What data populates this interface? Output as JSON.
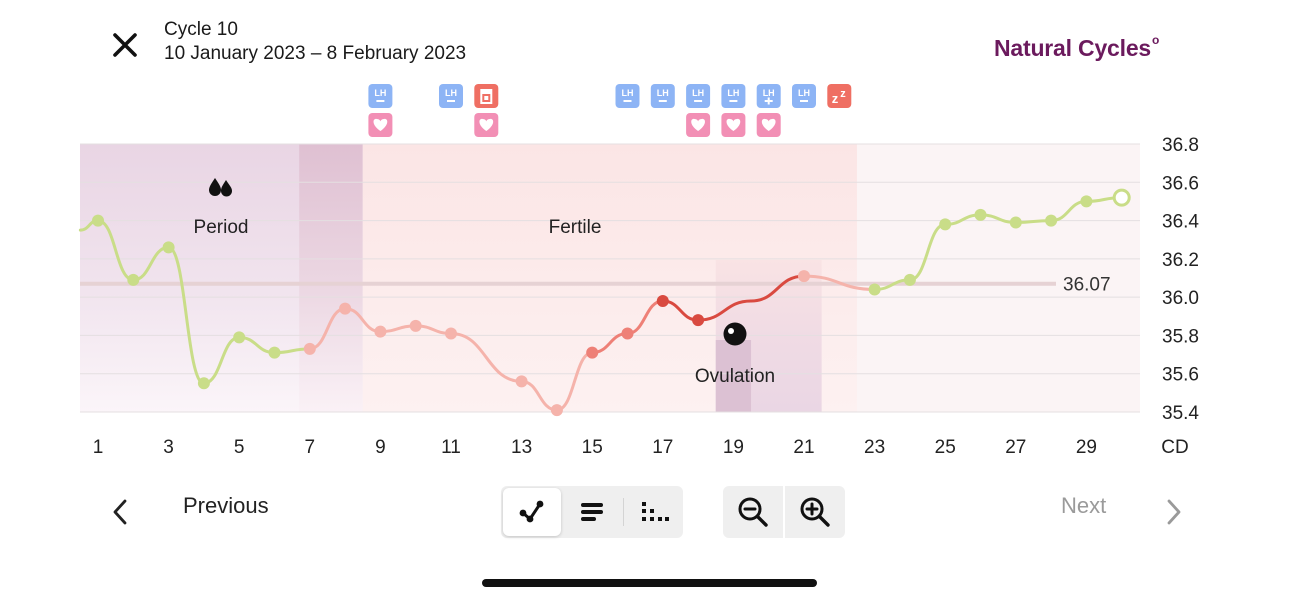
{
  "header": {
    "cycle_title": "Cycle 10",
    "cycle_dates": "10 January 2023 – 8 February 2023",
    "brand": "Natural Cycles",
    "brand_mark": "o"
  },
  "chart_data": {
    "type": "line",
    "x_label": "CD",
    "y_ticks": [
      "36.8",
      "36.6",
      "36.4",
      "36.2",
      "36.0",
      "35.8",
      "35.6",
      "35.4"
    ],
    "ylim": [
      35.4,
      36.8
    ],
    "x_ticks": [
      "1",
      "3",
      "5",
      "7",
      "9",
      "11",
      "13",
      "15",
      "17",
      "19",
      "21",
      "23",
      "25",
      "27",
      "29"
    ],
    "coverline": {
      "value": 36.07,
      "label": "36.07"
    },
    "phases": [
      {
        "name": "Period",
        "icon": "drops-icon",
        "start_day": 1,
        "end_day": 8.5
      },
      {
        "name": "Fertile",
        "start_day": 8.5,
        "end_day": 22.5
      },
      {
        "name": "Ovulation",
        "icon": "ovulation-dot-icon",
        "start_day": 18.5,
        "end_day": 21.5
      }
    ],
    "series": [
      {
        "values": [
          {
            "day": 0.5,
            "temp": 36.35,
            "color": "#c9dd88"
          },
          {
            "day": 1,
            "temp": 36.4,
            "color": "#c9dd88"
          },
          {
            "day": 2,
            "temp": 36.09,
            "color": "#c9dd88"
          },
          {
            "day": 3,
            "temp": 36.26,
            "color": "#c9dd88"
          },
          {
            "day": 4,
            "temp": 35.55,
            "color": "#c9dd88"
          },
          {
            "day": 5,
            "temp": 35.79,
            "color": "#c9dd88"
          },
          {
            "day": 6,
            "temp": 35.71,
            "color": "#c9dd88"
          },
          {
            "day": 7,
            "temp": 35.73,
            "color": "#f5b3ab"
          },
          {
            "day": 8,
            "temp": 35.94,
            "color": "#f5b3ab"
          },
          {
            "day": 9,
            "temp": 35.82,
            "color": "#f5b3ab"
          },
          {
            "day": 10,
            "temp": 35.85,
            "color": "#f5b3ab"
          },
          {
            "day": 11,
            "temp": 35.81,
            "color": "#f5b3ab"
          },
          {
            "day": 13,
            "temp": 35.56,
            "color": "#f5b3ab"
          },
          {
            "day": 14,
            "temp": 35.41,
            "color": "#f5b3ab"
          },
          {
            "day": 15,
            "temp": 35.71,
            "color": "#ee8077"
          },
          {
            "day": 16,
            "temp": 35.81,
            "color": "#ee8077"
          },
          {
            "day": 17,
            "temp": 35.98,
            "color": "#d94a40"
          },
          {
            "day": 18,
            "temp": 35.88,
            "color": "#d94a40"
          },
          {
            "day": 19.5,
            "temp": 35.98,
            "color": "#d94a40",
            "no_marker": true
          },
          {
            "day": 21,
            "temp": 36.11,
            "color": "#f5b3ab"
          },
          {
            "day": 23,
            "temp": 36.04,
            "color": "#c9dd88"
          },
          {
            "day": 24,
            "temp": 36.09,
            "color": "#c9dd88"
          },
          {
            "day": 25,
            "temp": 36.38,
            "color": "#c9dd88"
          },
          {
            "day": 26,
            "temp": 36.43,
            "color": "#c9dd88"
          },
          {
            "day": 27,
            "temp": 36.39,
            "color": "#c9dd88"
          },
          {
            "day": 28,
            "temp": 36.4,
            "color": "#c9dd88"
          },
          {
            "day": 29,
            "temp": 36.5,
            "color": "#c9dd88"
          },
          {
            "day": 30,
            "temp": 36.52,
            "color": "#c9dd88",
            "hollow": true
          }
        ]
      }
    ],
    "markers": [
      {
        "day": 9,
        "row": 1,
        "icon": "lh-negative-icon",
        "label": "LH"
      },
      {
        "day": 9,
        "row": 2,
        "icon": "heart-icon"
      },
      {
        "day": 11,
        "row": 1,
        "icon": "lh-negative-icon",
        "label": "LH"
      },
      {
        "day": 12,
        "row": 1,
        "icon": "pregnancy-test-icon"
      },
      {
        "day": 12,
        "row": 2,
        "icon": "heart-icon"
      },
      {
        "day": 16,
        "row": 1,
        "icon": "lh-negative-icon",
        "label": "LH"
      },
      {
        "day": 17,
        "row": 1,
        "icon": "lh-negative-icon",
        "label": "LH"
      },
      {
        "day": 18,
        "row": 1,
        "icon": "lh-negative-icon",
        "label": "LH"
      },
      {
        "day": 18,
        "row": 2,
        "icon": "heart-icon"
      },
      {
        "day": 19,
        "row": 1,
        "icon": "lh-negative-icon",
        "label": "LH"
      },
      {
        "day": 19,
        "row": 2,
        "icon": "heart-icon"
      },
      {
        "day": 20,
        "row": 1,
        "icon": "lh-positive-icon",
        "label": "LH"
      },
      {
        "day": 20,
        "row": 2,
        "icon": "heart-icon"
      },
      {
        "day": 21,
        "row": 1,
        "icon": "lh-negative-icon",
        "label": "LH"
      },
      {
        "day": 22,
        "row": 1,
        "icon": "sleep-icon",
        "label": "z"
      }
    ],
    "colors": {
      "lh": "#8db4f5",
      "heart": "#f28fb5",
      "red": "#ef6f63"
    }
  },
  "footer": {
    "previous_label": "Previous",
    "next_label": "Next",
    "view_buttons": [
      "graph-view-icon",
      "list-view-icon",
      "month-view-icon"
    ],
    "zoom_buttons": [
      "zoom-out-icon",
      "zoom-in-icon"
    ]
  }
}
